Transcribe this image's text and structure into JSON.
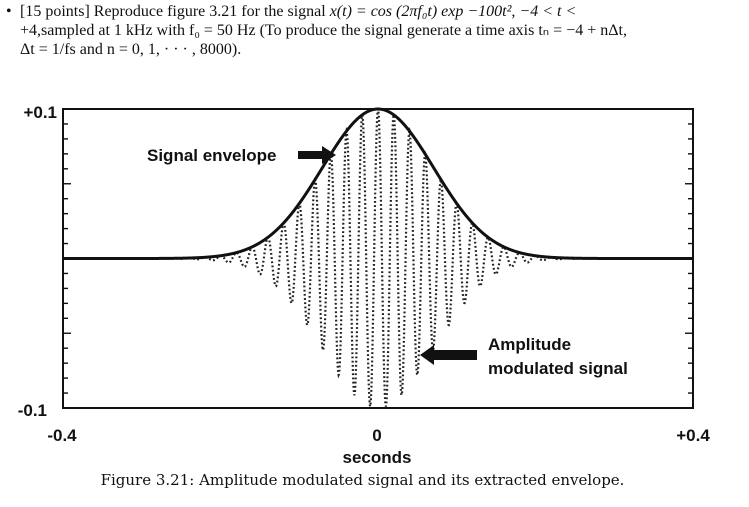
{
  "problem": {
    "bullet": "•",
    "line1_a": "[15 points] Reproduce figure 3.21 for the signal ",
    "line1_b": "x(t) = cos (2πf₀t) exp −100t², −4 < t <",
    "line2": "+4,sampled at 1 kHz with f₀ = 50 Hz (To produce the signal generate a time axis tₙ = −4 + nΔt,",
    "line3": "Δt = 1/fs and n = 0, 1, · · · , 8000)."
  },
  "figure": {
    "caption": "Figure 3.21: Amplitude modulated signal and its extracted envelope.",
    "annotation_envelope": "Signal envelope",
    "annotation_signal_1": "Amplitude",
    "annotation_signal_2": "modulated signal"
  },
  "chart_data": {
    "type": "line",
    "xlabel": "seconds",
    "ylabel": "",
    "xlim": [
      -0.4,
      0.4
    ],
    "ylim": [
      -0.1,
      0.1
    ],
    "x_tick_labels": [
      "-0.4",
      "0",
      "+0.4"
    ],
    "y_tick_labels": [
      "+0.1",
      "-0.1"
    ],
    "series": [
      {
        "style": "solid",
        "function": "0.1*exp(-(t/0.1)^2)"
      },
      {
        "style": "dotted",
        "function": "0.1*exp(-(t/0.1)^2)*cos(2*pi*50*t)"
      }
    ],
    "carrier_hz": 50,
    "envelope_peak": 0.1,
    "grid": false
  }
}
